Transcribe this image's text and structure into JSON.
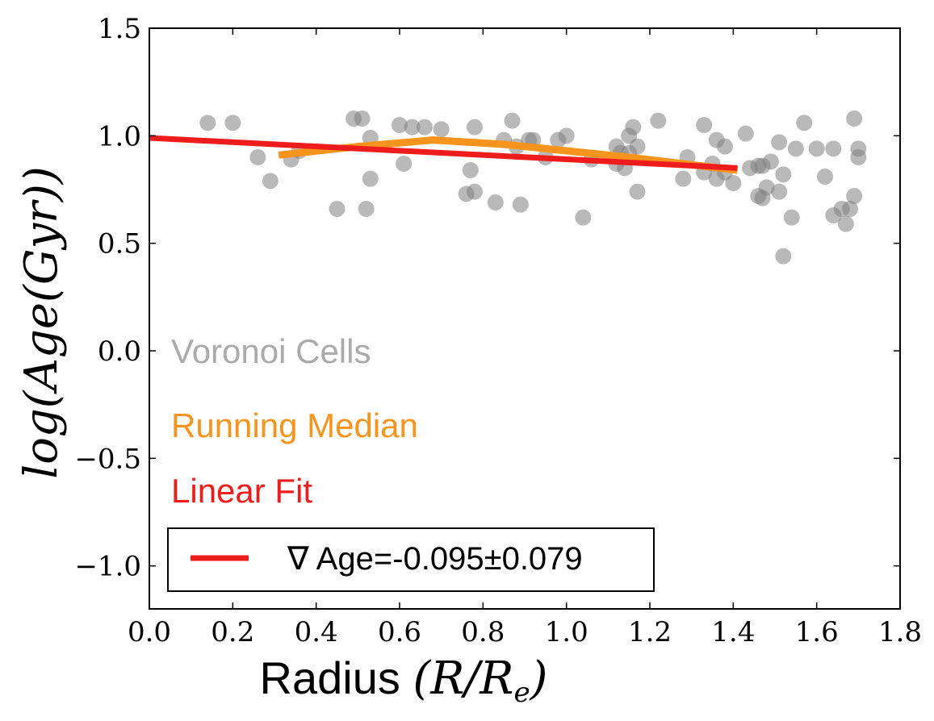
{
  "chart_data": {
    "type": "scatter",
    "title": "",
    "xlabel": "Radius (R/R_e)",
    "xlabel_parts": {
      "plain": "Radius ",
      "math": "(R/R",
      "sub": "e",
      "close": ")"
    },
    "ylabel": "log(Age(Gyr))",
    "xlim": [
      0.0,
      1.8
    ],
    "ylim": [
      -1.2,
      1.5
    ],
    "xticks": [
      0.0,
      0.2,
      0.4,
      0.6,
      0.8,
      1.0,
      1.2,
      1.4,
      1.6,
      1.8
    ],
    "xtick_labels": [
      "0.0",
      "0.2",
      "0.4",
      "0.6",
      "0.8",
      "1.0",
      "1.2",
      "1.4",
      "1.6",
      "1.8"
    ],
    "yticks": [
      1.5,
      1.0,
      0.5,
      0.0,
      -0.5,
      -1.0
    ],
    "ytick_labels": [
      "1.5",
      "1.0",
      "0.5",
      "0.0",
      "−0.5",
      "−1.0"
    ],
    "grid": false,
    "colors": {
      "points": "#808080",
      "median": "#f7941d",
      "fit": "#ee1c1c",
      "voronoi_text": "#aaaaaa"
    },
    "annotations": [
      "Voronoi Cells",
      "Running Median",
      "Linear Fit"
    ],
    "legend": {
      "location": "lower-left",
      "label": "∇ Age=-0.095±0.079"
    },
    "series": [
      {
        "name": "Voronoi Cells",
        "kind": "scatter",
        "points": [
          [
            0.14,
            1.06
          ],
          [
            0.2,
            1.06
          ],
          [
            0.26,
            0.9
          ],
          [
            0.29,
            0.79
          ],
          [
            0.34,
            0.89
          ],
          [
            0.36,
            0.93
          ],
          [
            0.45,
            0.66
          ],
          [
            0.49,
            1.08
          ],
          [
            0.51,
            1.08
          ],
          [
            0.52,
            0.66
          ],
          [
            0.53,
            0.99
          ],
          [
            0.53,
            0.8
          ],
          [
            0.6,
            1.05
          ],
          [
            0.61,
            0.87
          ],
          [
            0.63,
            1.04
          ],
          [
            0.66,
            1.04
          ],
          [
            0.7,
            1.03
          ],
          [
            0.76,
            0.73
          ],
          [
            0.77,
            0.84
          ],
          [
            0.78,
            0.74
          ],
          [
            0.78,
            1.04
          ],
          [
            0.83,
            0.69
          ],
          [
            0.85,
            0.98
          ],
          [
            0.87,
            1.07
          ],
          [
            0.88,
            0.95
          ],
          [
            0.89,
            0.68
          ],
          [
            0.91,
            0.98
          ],
          [
            0.92,
            0.98
          ],
          [
            0.95,
            0.9
          ],
          [
            0.98,
            0.98
          ],
          [
            1.0,
            1.0
          ],
          [
            1.04,
            0.62
          ],
          [
            1.06,
            0.89
          ],
          [
            1.12,
            0.95
          ],
          [
            1.12,
            0.87
          ],
          [
            1.13,
            0.92
          ],
          [
            1.14,
            0.85
          ],
          [
            1.15,
            1.0
          ],
          [
            1.15,
            0.92
          ],
          [
            1.16,
            1.04
          ],
          [
            1.17,
            0.95
          ],
          [
            1.17,
            0.74
          ],
          [
            1.22,
            1.07
          ],
          [
            1.28,
            0.8
          ],
          [
            1.29,
            0.9
          ],
          [
            1.33,
            1.05
          ],
          [
            1.33,
            0.83
          ],
          [
            1.35,
            0.87
          ],
          [
            1.36,
            0.98
          ],
          [
            1.36,
            0.8
          ],
          [
            1.38,
            0.83
          ],
          [
            1.38,
            0.95
          ],
          [
            1.4,
            0.78
          ],
          [
            1.43,
            1.01
          ],
          [
            1.44,
            0.85
          ],
          [
            1.46,
            0.86
          ],
          [
            1.46,
            0.72
          ],
          [
            1.47,
            0.71
          ],
          [
            1.47,
            0.86
          ],
          [
            1.48,
            0.76
          ],
          [
            1.49,
            0.88
          ],
          [
            1.51,
            0.97
          ],
          [
            1.51,
            0.74
          ],
          [
            1.52,
            0.82
          ],
          [
            1.52,
            0.44
          ],
          [
            1.54,
            0.62
          ],
          [
            1.55,
            0.94
          ],
          [
            1.57,
            1.06
          ],
          [
            1.6,
            0.94
          ],
          [
            1.62,
            0.81
          ],
          [
            1.64,
            0.94
          ],
          [
            1.64,
            0.63
          ],
          [
            1.66,
            0.66
          ],
          [
            1.67,
            0.59
          ],
          [
            1.68,
            0.66
          ],
          [
            1.69,
            1.08
          ],
          [
            1.69,
            0.72
          ],
          [
            1.7,
            0.94
          ],
          [
            1.7,
            0.9
          ]
        ]
      },
      {
        "name": "Running Median",
        "kind": "line",
        "x": [
          0.31,
          0.5,
          0.68,
          0.85,
          1.0,
          1.15,
          1.28,
          1.41
        ],
        "y": [
          0.91,
          0.95,
          0.98,
          0.96,
          0.93,
          0.9,
          0.87,
          0.84
        ]
      },
      {
        "name": "Linear Fit",
        "kind": "line",
        "x": [
          0.0,
          1.41
        ],
        "y": [
          0.99,
          0.85
        ]
      }
    ]
  }
}
